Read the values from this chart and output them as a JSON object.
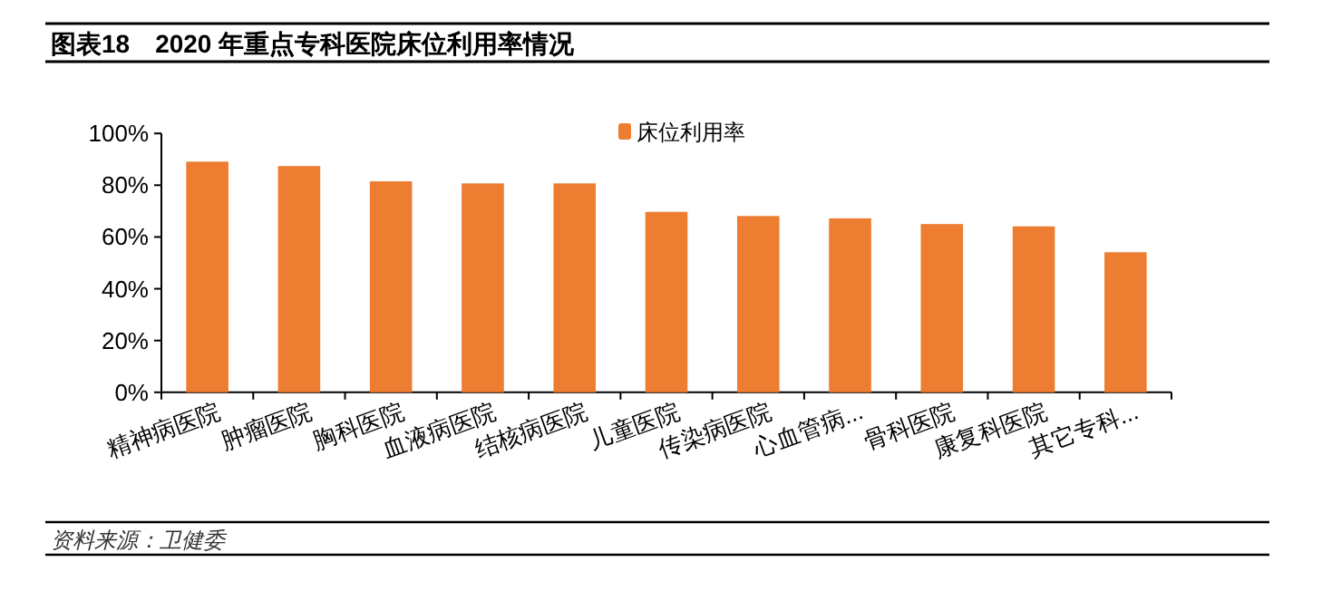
{
  "chart_data": {
    "type": "bar",
    "title": "图表18　2020 年重点专科医院床位利用率情况",
    "categories": [
      "精神病医院",
      "肿瘤医院",
      "胸科医院",
      "血液病医院",
      "结核病医院",
      "儿童医院",
      "传染病医院",
      "心血管病...",
      "骨科医院",
      "康复科医院",
      "其它专科..."
    ],
    "series": [
      {
        "name": "床位利用率",
        "color": "#ed7d31",
        "values": [
          89.1,
          87.4,
          81.5,
          80.7,
          80.7,
          69.7,
          68.1,
          67.2,
          65.0,
          64.1,
          54.1
        ]
      }
    ],
    "ylim": [
      0,
      100
    ],
    "yticks": [
      {
        "value": 0,
        "label": "0%"
      },
      {
        "value": 20,
        "label": "20%"
      },
      {
        "value": 40,
        "label": "40%"
      },
      {
        "value": 60,
        "label": "60%"
      },
      {
        "value": 80,
        "label": "80%"
      },
      {
        "value": 100,
        "label": "100%"
      }
    ],
    "grid": false,
    "legend": "top",
    "annotations": [
      "资料来源：卫健委"
    ]
  }
}
